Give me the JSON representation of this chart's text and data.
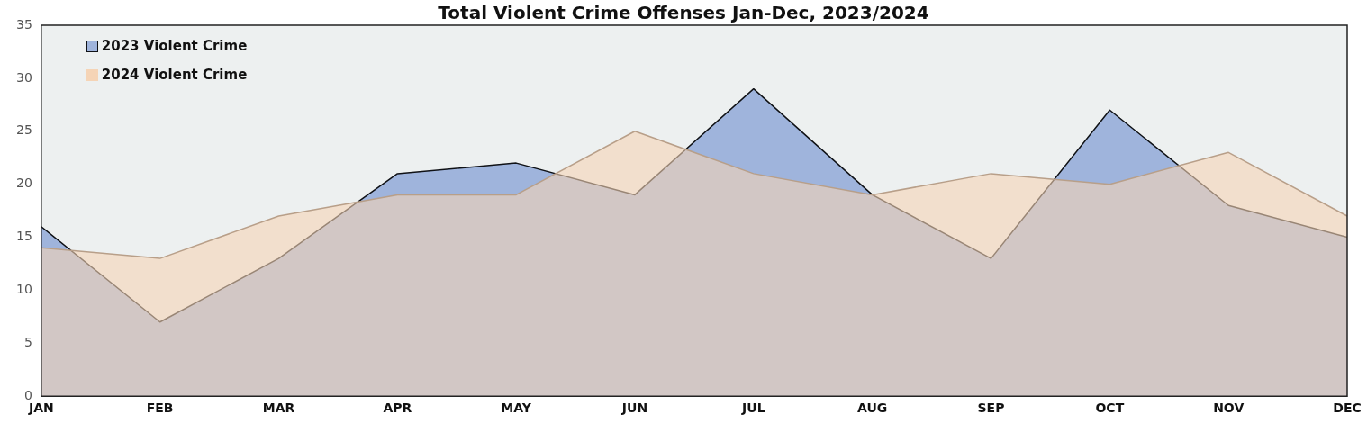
{
  "chart_data": {
    "type": "area",
    "title": "Total Violent Crime Offenses Jan-Dec, 2023/2024",
    "categories": [
      "JAN",
      "FEB",
      "MAR",
      "APR",
      "MAY",
      "JUN",
      "JUL",
      "AUG",
      "SEP",
      "OCT",
      "NOV",
      "DEC"
    ],
    "series": [
      {
        "name": "2023 Violent Crime",
        "color": "#9fb4dc",
        "values": [
          16,
          7,
          13,
          21,
          22,
          19,
          29,
          19,
          13,
          27,
          18,
          15
        ]
      },
      {
        "name": "2024 Violent Crime",
        "color": "#f5d4b6",
        "values": [
          14,
          13,
          17,
          19,
          19,
          25,
          21,
          19,
          21,
          20,
          23,
          17
        ]
      }
    ],
    "ylim": [
      0,
      35
    ],
    "yticks": [
      0,
      5,
      10,
      15,
      20,
      25,
      30,
      35
    ],
    "grid": false,
    "legend": "top left",
    "marker": "none"
  }
}
